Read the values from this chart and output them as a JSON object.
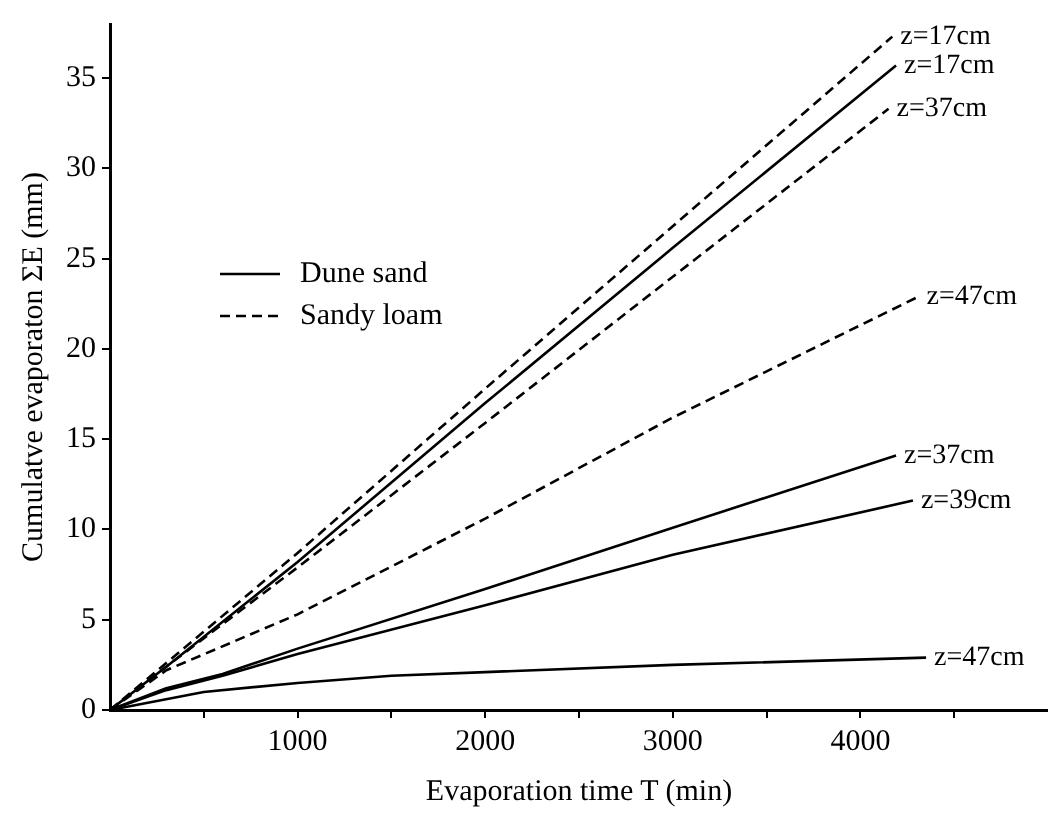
{
  "chart_data": {
    "type": "line",
    "xlabel": "Evaporation time T (min)",
    "ylabel": "Cumulatve evaporaton ΣE (mm)",
    "xlim": [
      0,
      5000
    ],
    "ylim": [
      0,
      38
    ],
    "xticks": [
      {
        "value": 500,
        "label": null
      },
      1000,
      {
        "value": 1500,
        "label": null
      },
      2000,
      {
        "value": 2500,
        "label": null
      },
      3000,
      {
        "value": 3500,
        "label": null
      },
      4000,
      {
        "value": 4500,
        "label": null
      }
    ],
    "yticks": [
      0,
      5,
      10,
      15,
      20,
      25,
      30,
      35
    ],
    "grid": false,
    "legend": "top left",
    "marker": "none",
    "series": [
      {
        "name": "Dune sand",
        "color": "#000000",
        "line_style": "solid",
        "x": [
          0,
          300,
          1000,
          2000,
          3000,
          4190
        ],
        "values": [
          0,
          2.4,
          8.2,
          17.0,
          25.6,
          35.7
        ]
      },
      {
        "color": "#000000",
        "line_style": "solid",
        "x": [
          0,
          300,
          600,
          1000,
          2000,
          3000,
          4190
        ],
        "values": [
          0,
          1.2,
          2.0,
          3.4,
          6.7,
          10.1,
          14.1
        ]
      },
      {
        "color": "#000000",
        "line_style": "solid",
        "x": [
          0,
          300,
          600,
          1000,
          2000,
          3000,
          4280
        ],
        "values": [
          0,
          1.1,
          1.9,
          3.1,
          5.8,
          8.6,
          11.6
        ]
      },
      {
        "color": "#000000",
        "line_style": "solid",
        "x": [
          0,
          500,
          1000,
          1500,
          2000,
          3000,
          4350
        ],
        "values": [
          0,
          1.0,
          1.5,
          1.9,
          2.1,
          2.5,
          2.9
        ]
      },
      {
        "name": "Sandy loam",
        "color": "#000000",
        "line_style": "dashed",
        "x": [
          0,
          300,
          1000,
          2000,
          3000,
          4170
        ],
        "values": [
          0,
          2.6,
          8.7,
          17.8,
          26.8,
          37.3
        ]
      },
      {
        "color": "#000000",
        "line_style": "dashed",
        "x": [
          0,
          300,
          1000,
          2000,
          3000,
          4150
        ],
        "values": [
          0,
          2.4,
          7.9,
          15.9,
          24.0,
          33.3
        ]
      },
      {
        "color": "#000000",
        "line_style": "dashed",
        "x": [
          0,
          300,
          1000,
          2000,
          3000,
          4310
        ],
        "values": [
          0,
          2.2,
          5.3,
          10.6,
          16.2,
          22.9
        ]
      }
    ],
    "annotations": [
      {
        "text": "z=17cm",
        "x": 4170,
        "y": 37.3
      },
      {
        "text": "z=17cm",
        "x": 4190,
        "y": 35.7
      },
      {
        "text": "z=37cm",
        "x": 4150,
        "y": 33.3
      },
      {
        "text": "z=47cm",
        "x": 4310,
        "y": 22.9
      },
      {
        "text": "z=37cm",
        "x": 4190,
        "y": 14.1
      },
      {
        "text": "z=39cm",
        "x": 4280,
        "y": 11.6
      },
      {
        "text": "z=47cm",
        "x": 4350,
        "y": 2.9
      }
    ]
  }
}
